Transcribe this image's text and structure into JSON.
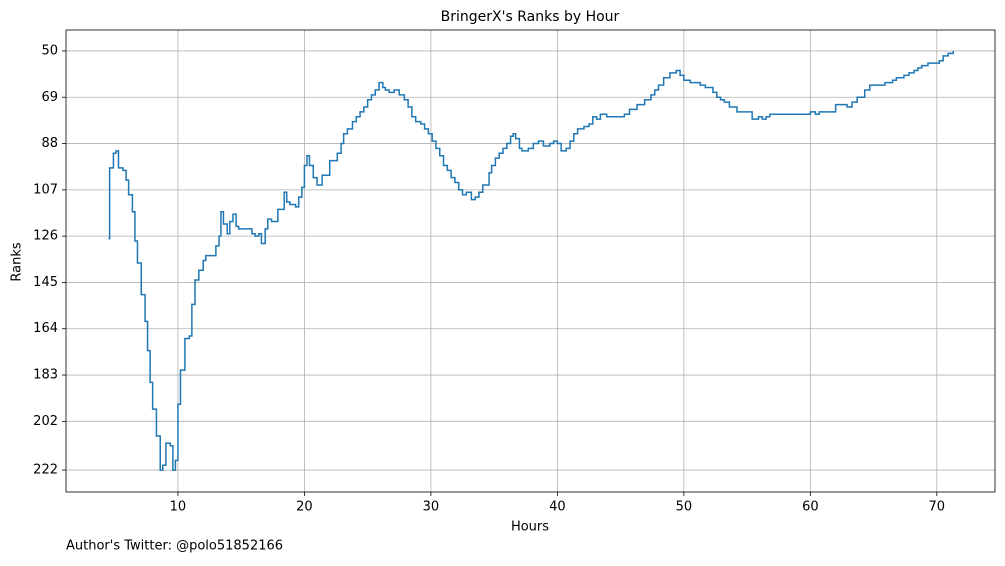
{
  "chart_data": {
    "type": "step",
    "title": "BringerX's Ranks by Hour",
    "x_label": "Hours",
    "y_label": "Ranks",
    "footer": "Author's Twitter: @polo51852166",
    "x": [
      4.5,
      4.6,
      4.9,
      5.1,
      5.3,
      5.65,
      5.9,
      6.1,
      6.4,
      6.6,
      6.8,
      7.1,
      7.4,
      7.6,
      7.8,
      8.0,
      8.3,
      8.6,
      8.8,
      9.05,
      9.4,
      9.6,
      9.8,
      10.0,
      10.2,
      10.55,
      10.9,
      11.1,
      11.35,
      11.65,
      12.0,
      12.2,
      13.0,
      13.25,
      13.4,
      13.6,
      13.9,
      14.1,
      14.35,
      14.6,
      14.8,
      15.85,
      16.1,
      16.4,
      16.6,
      16.9,
      17.1,
      17.4,
      17.9,
      18.4,
      18.6,
      18.85,
      19.3,
      19.55,
      19.8,
      20.0,
      20.2,
      20.4,
      20.7,
      21.0,
      21.4,
      22.0,
      22.6,
      22.9,
      23.1,
      23.4,
      23.8,
      24.1,
      24.4,
      24.7,
      25.0,
      25.3,
      25.6,
      25.9,
      26.2,
      26.4,
      26.7,
      27.1,
      27.5,
      27.9,
      28.2,
      28.5,
      28.8,
      29.2,
      29.5,
      29.8,
      30.1,
      30.4,
      30.7,
      31.0,
      31.3,
      31.6,
      31.9,
      32.2,
      32.5,
      32.8,
      33.2,
      33.5,
      33.8,
      34.1,
      34.6,
      34.8,
      35.1,
      35.4,
      35.7,
      36.0,
      36.3,
      36.5,
      36.7,
      37.0,
      37.2,
      37.7,
      38.1,
      38.5,
      38.9,
      39.4,
      39.7,
      40.0,
      40.3,
      40.7,
      41.0,
      41.3,
      41.6,
      42.1,
      42.5,
      42.8,
      43.1,
      43.4,
      43.9,
      45.3,
      45.7,
      46.3,
      46.9,
      47.4,
      47.7,
      48.0,
      48.4,
      48.9,
      49.4,
      49.7,
      50.0,
      50.5,
      51.3,
      51.7,
      52.3,
      52.6,
      52.9,
      53.2,
      53.6,
      54.2,
      55.4,
      55.9,
      56.2,
      56.5,
      56.8,
      57.9,
      60.0,
      60.4,
      60.7,
      61.8,
      62.0,
      62.9,
      63.3,
      63.7,
      64.3,
      64.7,
      65.2,
      65.9,
      66.5,
      66.8,
      67.4,
      67.8,
      68.2,
      68.5,
      68.8,
      69.3,
      70.2,
      70.5,
      70.9,
      71.3
    ],
    "series": [
      {
        "color": "#1f77b4",
        "values": [
          127,
          98,
          92,
          91,
          98,
          99,
          103,
          109,
          116,
          128,
          137,
          150,
          161,
          173,
          186,
          197,
          208,
          222,
          220,
          211,
          212,
          222,
          218,
          195,
          181,
          168,
          167,
          154,
          144,
          140,
          136,
          134,
          130,
          126,
          116,
          121,
          125,
          120,
          117,
          122,
          123,
          125,
          126,
          125,
          129,
          123,
          119,
          120,
          115,
          108,
          112,
          113,
          114,
          110,
          106,
          97,
          93,
          97,
          102,
          105,
          101,
          95,
          92,
          88,
          84,
          82,
          79,
          77,
          75,
          73,
          70,
          68,
          66,
          63,
          65,
          66,
          67,
          66,
          68,
          70,
          73,
          77,
          79,
          80,
          82,
          84,
          87,
          90,
          93,
          97,
          99,
          102,
          104,
          107,
          109,
          108,
          111,
          110,
          108,
          105,
          100,
          97,
          94,
          92,
          90,
          88,
          85,
          84,
          86,
          90,
          91,
          90,
          88,
          87,
          89,
          88,
          87,
          88,
          91,
          90,
          87,
          84,
          82,
          81,
          80,
          77,
          78,
          76,
          77,
          76,
          74,
          72,
          70,
          68,
          66,
          64,
          61,
          59,
          58,
          60,
          62,
          63,
          64,
          65,
          67,
          69,
          70,
          71,
          73,
          75,
          78,
          77,
          78,
          77,
          76,
          76,
          75,
          76,
          75,
          75,
          72,
          73,
          71,
          69,
          66,
          64,
          64,
          63,
          62,
          61,
          60,
          59,
          58,
          57,
          56,
          55,
          54,
          52,
          51,
          50
        ]
      }
    ],
    "xlim": [
      1.15,
      74.6
    ],
    "ylim": [
      231.0,
      41.4
    ],
    "xticks": [
      10,
      20,
      30,
      40,
      50,
      60,
      70
    ],
    "yticks": [
      50,
      69,
      88,
      107,
      126,
      145,
      164,
      183,
      202,
      222
    ],
    "grid": true
  }
}
